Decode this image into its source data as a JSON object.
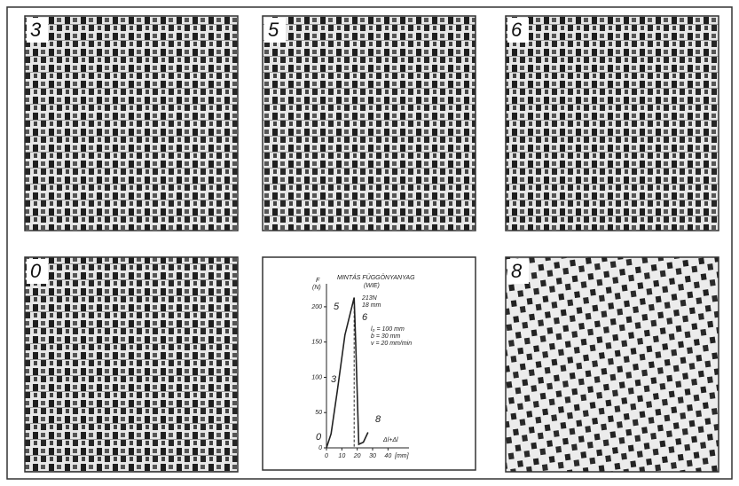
{
  "panels": [
    {
      "label": "3"
    },
    {
      "label": "5"
    },
    {
      "label": "6"
    },
    {
      "label": "0"
    },
    {
      "label": "8"
    }
  ],
  "chart_data": {
    "type": "line",
    "title": [
      "MINTÁS FÜGGÖNYANYAG",
      "(WIE)"
    ],
    "y_label": [
      "F",
      "(N)"
    ],
    "x_label": "[mm]",
    "x_var": "Δl+Δl",
    "x": [
      0,
      3,
      7,
      12,
      18,
      19,
      21,
      24,
      27
    ],
    "values": [
      0,
      20,
      80,
      160,
      213,
      150,
      5,
      8,
      22
    ],
    "color": "#222222",
    "xlim": [
      0,
      45
    ],
    "ylim": [
      0,
      220
    ],
    "xticks": [
      0,
      10,
      20,
      30,
      40
    ],
    "yticks": [
      0,
      50,
      100,
      150,
      200
    ],
    "annotations": [
      "0",
      "3",
      "5",
      "6",
      "8",
      "213N",
      "18 mm",
      "l₀ = 100 mm",
      "b = 30 mm",
      "v = 20 mm/min"
    ]
  }
}
